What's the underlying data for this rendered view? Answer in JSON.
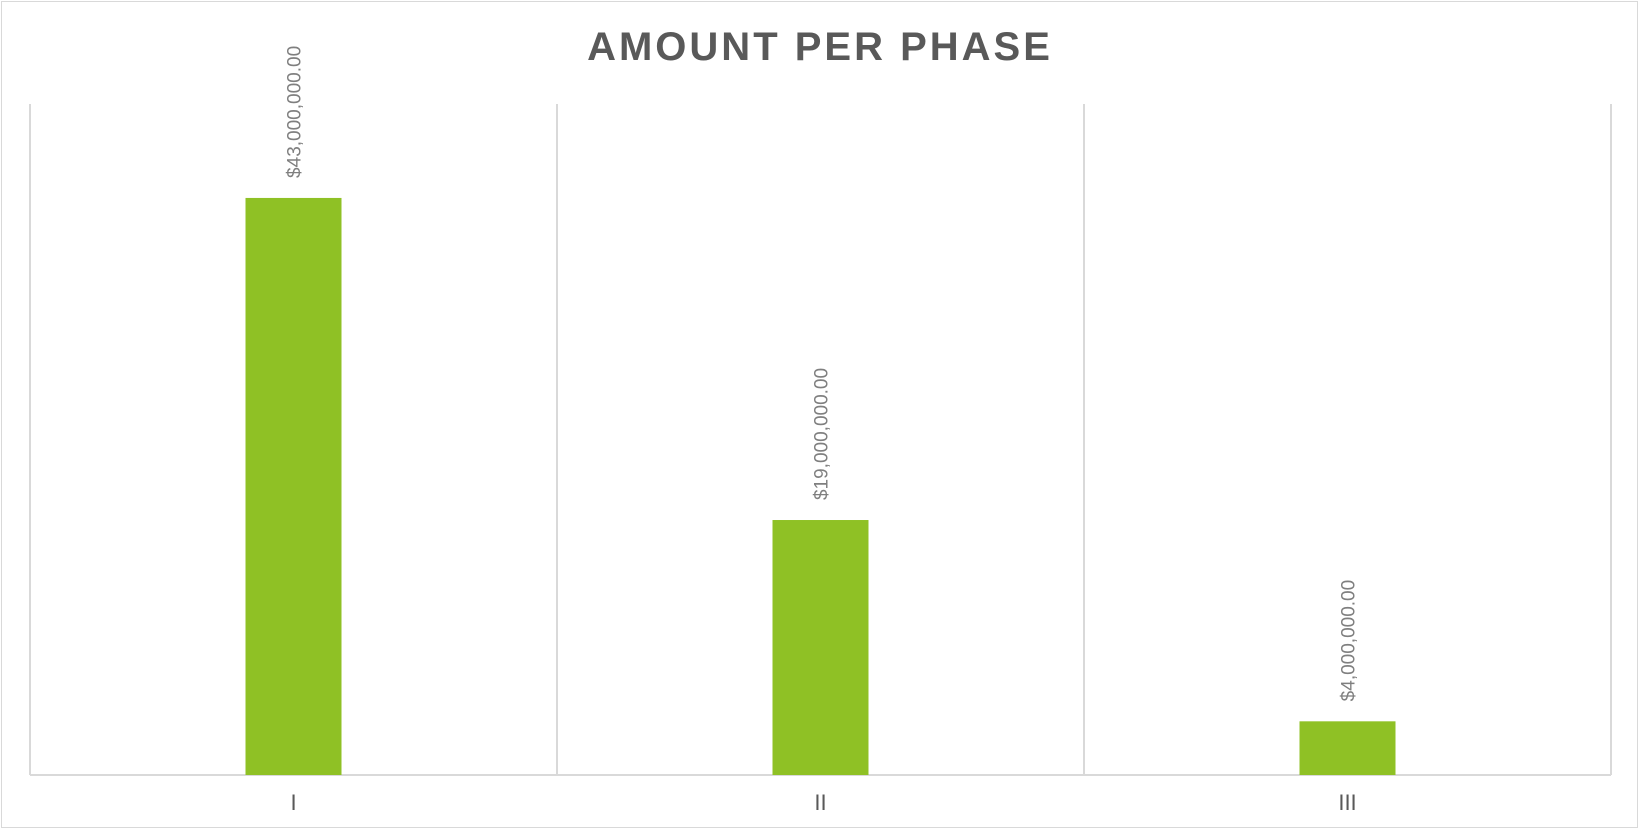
{
  "chart_data": {
    "type": "bar",
    "title": "AMOUNT PER PHASE",
    "xlabel": "",
    "ylabel": "",
    "categories": [
      "I",
      "II",
      "III"
    ],
    "values": [
      43000000,
      19000000,
      4000000
    ],
    "data_labels": [
      "$43,000,000.00",
      "$19,000,000.00",
      "$4,000,000.00"
    ],
    "ylim": [
      0,
      50000000
    ],
    "grid": "vertical category separators",
    "legend": "none",
    "bar_color": "#8FC125",
    "gridline_color": "#d9d9d9",
    "text_color": "#595959",
    "label_color": "#7f7f7f"
  }
}
